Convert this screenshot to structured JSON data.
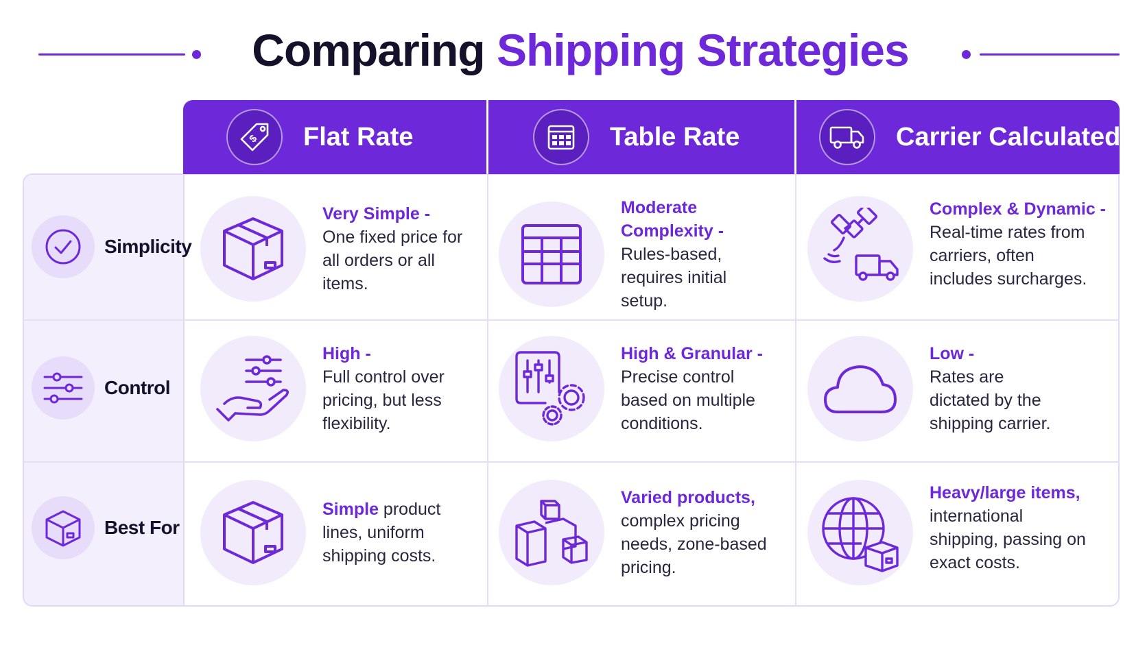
{
  "title": {
    "part1": "Comparing",
    "part2": "Shipping Strategies"
  },
  "columns": [
    {
      "label": "Flat Rate",
      "icon": "price-tag-dollar-icon"
    },
    {
      "label": "Table Rate",
      "icon": "calendar-grid-icon"
    },
    {
      "label": "Carrier Calculated",
      "icon": "delivery-truck-icon"
    }
  ],
  "rows": [
    {
      "label": "Simplicity",
      "icon": "check-circle-icon",
      "cells": [
        {
          "highlight": "Very Simple -",
          "body": "One fixed price for all orders or all items.",
          "icon": "package-box-icon"
        },
        {
          "highlight": "Moderate Complexity -",
          "body": "Rules-based, requires initial setup.",
          "icon": "table-grid-icon"
        },
        {
          "highlight": "Complex & Dynamic -",
          "body": "Real-time rates from carriers, often includes surcharges.",
          "icon": "satellite-truck-icon"
        }
      ]
    },
    {
      "label": "Control",
      "icon": "sliders-icon",
      "cells": [
        {
          "highlight": "High -",
          "body": "Full control over pricing, but less flexibility.",
          "icon": "hand-sliders-icon"
        },
        {
          "highlight": "High & Granular -",
          "body": "Precise control based on multiple conditions.",
          "icon": "control-panel-gears-icon"
        },
        {
          "highlight": "Low -",
          "body": "Rates are dictated by the shipping carrier.",
          "icon": "cloud-icon"
        }
      ]
    },
    {
      "label": "Best For",
      "icon": "box-icon",
      "cells": [
        {
          "highlight": "Simple",
          "body": " product lines, uniform shipping costs.",
          "icon": "package-box-icon"
        },
        {
          "highlight": "Varied products,",
          "body": "complex pricing needs, zone-based pricing.",
          "icon": "stacked-boxes-icon"
        },
        {
          "highlight": "Heavy/large items,",
          "body": "international shipping, passing on exact costs.",
          "icon": "globe-box-icon"
        }
      ]
    }
  ],
  "colors": {
    "accent": "#6d28d9",
    "title_dark": "#14112b",
    "row_panel": "#f4effd",
    "icon_bg": "#f1ebfc"
  }
}
